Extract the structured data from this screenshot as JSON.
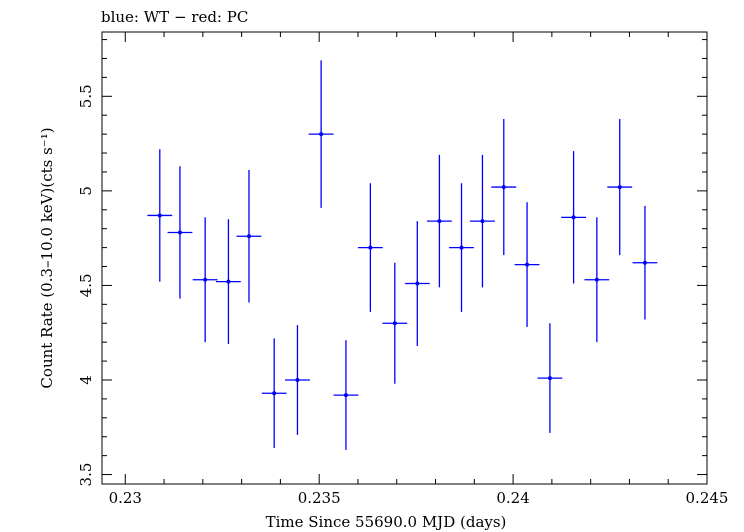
{
  "chart_data": {
    "type": "scatter",
    "title": "blue: WT − red: PC",
    "xlabel": "Time Since 55690.0 MJD (days)",
    "ylabel": "Count Rate (0.3–10.0 keV)(cts s⁻¹)",
    "xlim": [
      0.2294,
      0.245
    ],
    "ylim": [
      3.45,
      5.84
    ],
    "x_ticks": [
      {
        "value": 0.23,
        "label": "0.23"
      },
      {
        "value": 0.235,
        "label": "0.235"
      },
      {
        "value": 0.24,
        "label": "0.24"
      },
      {
        "value": 0.245,
        "label": "0.245"
      }
    ],
    "y_ticks": [
      {
        "value": 3.5,
        "label": "3.5"
      },
      {
        "value": 4,
        "label": "4"
      },
      {
        "value": 4.5,
        "label": "4.5"
      },
      {
        "value": 5,
        "label": "5"
      },
      {
        "value": 5.5,
        "label": "5.5"
      }
    ],
    "grid": false,
    "series": [
      {
        "color": "#0000ff",
        "points": [
          {
            "x": 0.23089,
            "y": 4.87,
            "xerr": 0.00032,
            "yerr": 0.35
          },
          {
            "x": 0.23141,
            "y": 4.78,
            "xerr": 0.00032,
            "yerr": 0.35
          },
          {
            "x": 0.23206,
            "y": 4.53,
            "xerr": 0.00032,
            "yerr": 0.33
          },
          {
            "x": 0.23266,
            "y": 4.52,
            "xerr": 0.00032,
            "yerr": 0.33
          },
          {
            "x": 0.23319,
            "y": 4.76,
            "xerr": 0.00032,
            "yerr": 0.35
          },
          {
            "x": 0.23384,
            "y": 3.93,
            "xerr": 0.00032,
            "yerr": 0.29
          },
          {
            "x": 0.23444,
            "y": 4.0,
            "xerr": 0.00032,
            "yerr": 0.29
          },
          {
            "x": 0.23505,
            "y": 5.3,
            "xerr": 0.00032,
            "yerr": 0.39
          },
          {
            "x": 0.23569,
            "y": 3.92,
            "xerr": 0.00032,
            "yerr": 0.29
          },
          {
            "x": 0.23632,
            "y": 4.7,
            "xerr": 0.00032,
            "yerr": 0.34
          },
          {
            "x": 0.23695,
            "y": 4.3,
            "xerr": 0.00032,
            "yerr": 0.32
          },
          {
            "x": 0.23753,
            "y": 4.51,
            "xerr": 0.00032,
            "yerr": 0.33
          },
          {
            "x": 0.2381,
            "y": 4.84,
            "xerr": 0.00032,
            "yerr": 0.35
          },
          {
            "x": 0.23867,
            "y": 4.7,
            "xerr": 0.00032,
            "yerr": 0.34
          },
          {
            "x": 0.23921,
            "y": 4.84,
            "xerr": 0.00032,
            "yerr": 0.35
          },
          {
            "x": 0.23976,
            "y": 5.02,
            "xerr": 0.00032,
            "yerr": 0.36
          },
          {
            "x": 0.24036,
            "y": 4.61,
            "xerr": 0.00032,
            "yerr": 0.33
          },
          {
            "x": 0.24095,
            "y": 4.01,
            "xerr": 0.00032,
            "yerr": 0.29
          },
          {
            "x": 0.24156,
            "y": 4.86,
            "xerr": 0.00032,
            "yerr": 0.35
          },
          {
            "x": 0.24216,
            "y": 4.53,
            "xerr": 0.00032,
            "yerr": 0.33
          },
          {
            "x": 0.24275,
            "y": 5.02,
            "xerr": 0.00032,
            "yerr": 0.36
          },
          {
            "x": 0.2434,
            "y": 4.62,
            "xerr": 0.00032,
            "yerr": 0.3
          }
        ]
      }
    ]
  }
}
